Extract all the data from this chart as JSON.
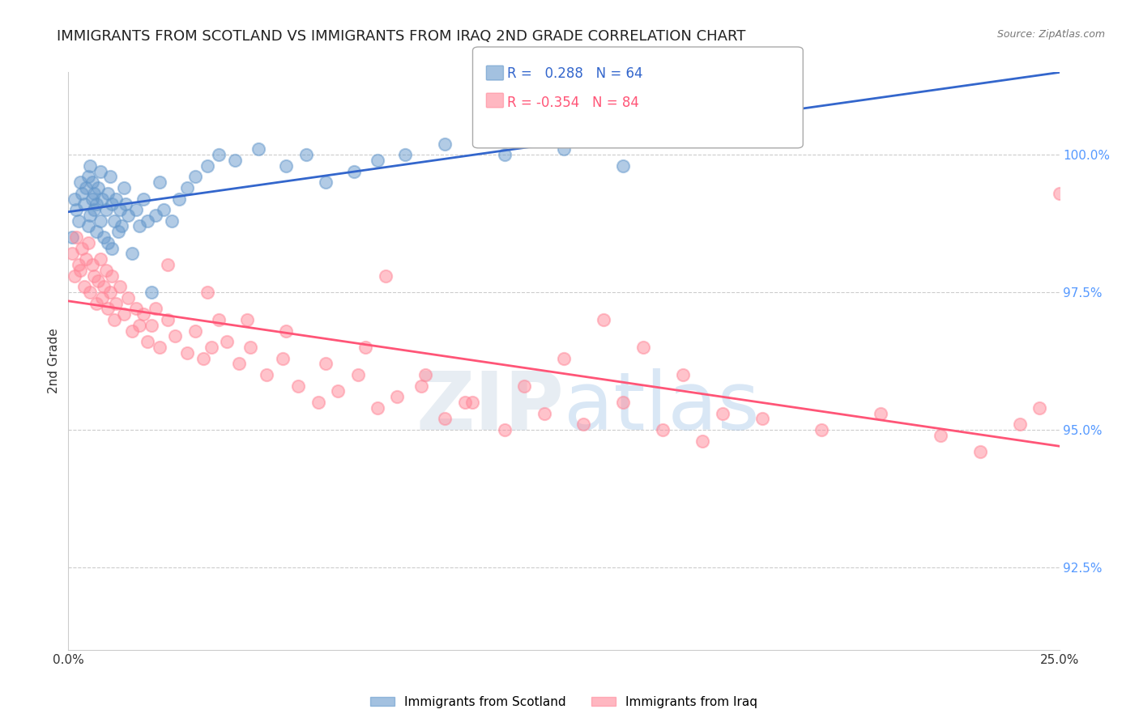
{
  "title": "IMMIGRANTS FROM SCOTLAND VS IMMIGRANTS FROM IRAQ 2ND GRADE CORRELATION CHART",
  "source_text": "Source: ZipAtlas.com",
  "xlabel": "",
  "ylabel": "2nd Grade",
  "xlim": [
    0.0,
    25.0
  ],
  "ylim": [
    91.0,
    101.5
  ],
  "yticks": [
    92.5,
    95.0,
    97.5,
    100.0
  ],
  "ytick_labels": [
    "92.5%",
    "95.0%",
    "97.5%",
    "100.0%"
  ],
  "xticks": [
    0.0,
    5.0,
    10.0,
    15.0,
    20.0,
    25.0
  ],
  "xtick_labels": [
    "0.0%",
    "",
    "",
    "",
    "",
    "25.0%"
  ],
  "scotland_color": "#6699cc",
  "iraq_color": "#ff8899",
  "scotland_line_color": "#3366cc",
  "iraq_line_color": "#ff5577",
  "scotland_R": 0.288,
  "scotland_N": 64,
  "iraq_R": -0.354,
  "iraq_N": 84,
  "legend_R_color": "#3366cc",
  "legend_label1": "Immigrants from Scotland",
  "legend_label2": "Immigrants from Iraq",
  "watermark_zip": "ZIP",
  "watermark_atlas": "atlas",
  "background_color": "#ffffff",
  "title_color": "#222222",
  "title_fontsize": 13,
  "axis_label_color": "#333333",
  "right_axis_color": "#5599ff",
  "scotland_x": [
    0.1,
    0.15,
    0.2,
    0.25,
    0.3,
    0.35,
    0.4,
    0.45,
    0.5,
    0.5,
    0.55,
    0.55,
    0.6,
    0.6,
    0.65,
    0.65,
    0.7,
    0.7,
    0.75,
    0.8,
    0.8,
    0.85,
    0.9,
    0.95,
    1.0,
    1.0,
    1.05,
    1.1,
    1.1,
    1.15,
    1.2,
    1.25,
    1.3,
    1.35,
    1.4,
    1.45,
    1.5,
    1.6,
    1.7,
    1.8,
    1.9,
    2.0,
    2.1,
    2.2,
    2.3,
    2.4,
    2.6,
    2.8,
    3.0,
    3.2,
    3.5,
    3.8,
    4.2,
    4.8,
    5.5,
    6.0,
    6.5,
    7.2,
    7.8,
    8.5,
    9.5,
    11.0,
    12.5,
    14.0
  ],
  "scotland_y": [
    98.5,
    99.2,
    99.0,
    98.8,
    99.5,
    99.3,
    99.1,
    99.4,
    99.6,
    98.7,
    99.8,
    98.9,
    99.2,
    99.5,
    99.0,
    99.3,
    98.6,
    99.1,
    99.4,
    99.7,
    98.8,
    99.2,
    98.5,
    99.0,
    99.3,
    98.4,
    99.6,
    99.1,
    98.3,
    98.8,
    99.2,
    98.6,
    99.0,
    98.7,
    99.4,
    99.1,
    98.9,
    98.2,
    99.0,
    98.7,
    99.2,
    98.8,
    97.5,
    98.9,
    99.5,
    99.0,
    98.8,
    99.2,
    99.4,
    99.6,
    99.8,
    100.0,
    99.9,
    100.1,
    99.8,
    100.0,
    99.5,
    99.7,
    99.9,
    100.0,
    100.2,
    100.0,
    100.1,
    99.8
  ],
  "iraq_x": [
    0.1,
    0.15,
    0.2,
    0.25,
    0.3,
    0.35,
    0.4,
    0.45,
    0.5,
    0.55,
    0.6,
    0.65,
    0.7,
    0.75,
    0.8,
    0.85,
    0.9,
    0.95,
    1.0,
    1.05,
    1.1,
    1.15,
    1.2,
    1.3,
    1.4,
    1.5,
    1.6,
    1.7,
    1.8,
    1.9,
    2.0,
    2.1,
    2.2,
    2.3,
    2.5,
    2.7,
    3.0,
    3.2,
    3.4,
    3.6,
    3.8,
    4.0,
    4.3,
    4.6,
    5.0,
    5.4,
    5.8,
    6.3,
    6.8,
    7.3,
    7.8,
    8.3,
    8.9,
    9.5,
    10.2,
    11.0,
    12.0,
    13.0,
    14.0,
    15.0,
    16.0,
    17.5,
    19.0,
    20.5,
    22.0,
    23.0,
    24.0,
    24.5,
    25.0,
    2.5,
    3.5,
    4.5,
    5.5,
    6.5,
    7.5,
    8.0,
    9.0,
    10.0,
    11.5,
    12.5,
    13.5,
    14.5,
    15.5,
    16.5
  ],
  "iraq_y": [
    98.2,
    97.8,
    98.5,
    98.0,
    97.9,
    98.3,
    97.6,
    98.1,
    98.4,
    97.5,
    98.0,
    97.8,
    97.3,
    97.7,
    98.1,
    97.4,
    97.6,
    97.9,
    97.2,
    97.5,
    97.8,
    97.0,
    97.3,
    97.6,
    97.1,
    97.4,
    96.8,
    97.2,
    96.9,
    97.1,
    96.6,
    96.9,
    97.2,
    96.5,
    97.0,
    96.7,
    96.4,
    96.8,
    96.3,
    96.5,
    97.0,
    96.6,
    96.2,
    96.5,
    96.0,
    96.3,
    95.8,
    95.5,
    95.7,
    96.0,
    95.4,
    95.6,
    95.8,
    95.2,
    95.5,
    95.0,
    95.3,
    95.1,
    95.5,
    95.0,
    94.8,
    95.2,
    95.0,
    95.3,
    94.9,
    94.6,
    95.1,
    95.4,
    99.3,
    98.0,
    97.5,
    97.0,
    96.8,
    96.2,
    96.5,
    97.8,
    96.0,
    95.5,
    95.8,
    96.3,
    97.0,
    96.5,
    96.0,
    95.3
  ]
}
